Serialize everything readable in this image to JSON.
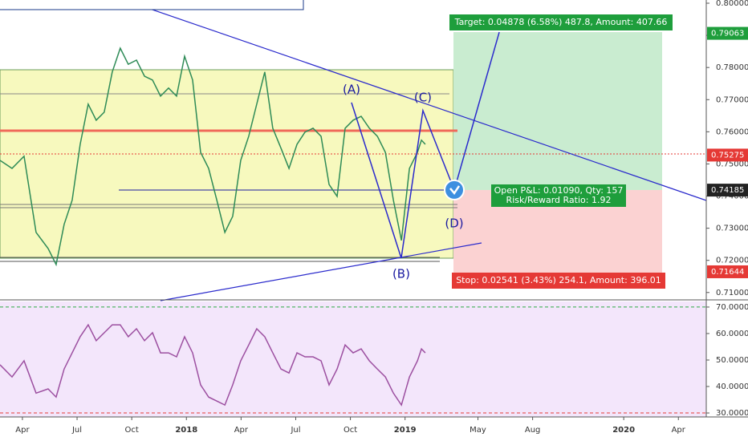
{
  "chart_data": [
    {
      "type": "line",
      "name": "price",
      "x": [
        1.77,
        2.43,
        3.09,
        3.75,
        4.41,
        4.85,
        5.29,
        5.73,
        6.17,
        6.61,
        7.05,
        7.49,
        7.93,
        8.37,
        8.81,
        9.26,
        9.7,
        10.14,
        10.58,
        11.02,
        11.46,
        11.9,
        12.34,
        12.78,
        13.22,
        13.67,
        14.11,
        14.54,
        14.98,
        15.42,
        15.86,
        16.3,
        16.74,
        17.19,
        17.63,
        18.07,
        18.51,
        18.95,
        19.39,
        19.83,
        20.27,
        20.71,
        21.15,
        21.59,
        22.04,
        22.48,
        22.92,
        23.36,
        23.8,
        24.24,
        24.68,
        24.9,
        25.11
      ],
      "series": [
        {
          "color": "#2e8b57",
          "values": [
            0.7511,
            0.7486,
            0.7524,
            0.7287,
            0.7237,
            0.7187,
            0.7312,
            0.7387,
            0.7561,
            0.7686,
            0.7636,
            0.7661,
            0.7786,
            0.786,
            0.781,
            0.7823,
            0.7773,
            0.7761,
            0.7711,
            0.7736,
            0.7711,
            0.7835,
            0.7761,
            0.7536,
            0.7486,
            0.7387,
            0.7287,
            0.7337,
            0.7511,
            0.7586,
            0.7686,
            0.7786,
            0.7611,
            0.7549,
            0.7486,
            0.7561,
            0.7599,
            0.7611,
            0.7586,
            0.7436,
            0.7399,
            0.7611,
            0.7636,
            0.7648,
            0.7611,
            0.7586,
            0.7536,
            0.7387,
            0.7262,
            0.7486,
            0.7536,
            0.7574,
            0.7561
          ]
        }
      ],
      "xlim": [
        1.77,
        40.53
      ],
      "ylim": [
        0.7082,
        0.801
      ],
      "yticks": [
        {
          "value": 0.71,
          "label": "0.71000"
        },
        {
          "value": 0.72,
          "label": "0.72000"
        },
        {
          "value": 0.73,
          "label": "0.73000"
        },
        {
          "value": 0.74,
          "label": "0.74000"
        },
        {
          "value": 0.75,
          "label": "0.75000"
        },
        {
          "value": 0.76,
          "label": "0.76000"
        },
        {
          "value": 0.77,
          "label": "0.77000"
        },
        {
          "value": 0.78,
          "label": "0.78000"
        },
        {
          "value": 0.79,
          "label": "0.79000"
        },
        {
          "value": 0.8,
          "label": "0.80000"
        }
      ],
      "price_tags": [
        0.79063,
        0.75275,
        0.74185,
        0.71644
      ],
      "price_tag_colors": [
        "#1e9e3c",
        "#e53935",
        "#222222",
        "#e53935"
      ],
      "points": [
        {
          "label": "(A)",
          "x": 21.06,
          "y": 0.7691
        },
        {
          "label": "(B)",
          "x": 23.79,
          "y": 0.7207
        },
        {
          "label": "(C)",
          "x": 24.98,
          "y": 0.7666
        },
        {
          "label": "(D)",
          "x": 26.7,
          "y": 0.7419
        }
      ],
      "target_point": {
        "x": 29.17,
        "y": 0.791
      },
      "annotations": [
        "Target: 0.04878 (6.58%) 487.8, Amount: 407.66",
        "Open P&L: 0.01090, Qty: 157",
        "Risk/Reward Ratio: 1.92",
        "Stop: 0.02541 (3.43%) 254.1, Amount: 396.01"
      ]
    },
    {
      "type": "line",
      "name": "rsi",
      "x": [
        1.77,
        2.43,
        3.09,
        3.75,
        4.41,
        4.85,
        5.29,
        5.73,
        6.17,
        6.61,
        7.05,
        7.49,
        7.93,
        8.37,
        8.81,
        9.26,
        9.7,
        10.14,
        10.58,
        11.02,
        11.46,
        11.9,
        12.34,
        12.78,
        13.22,
        13.67,
        14.11,
        14.54,
        14.98,
        15.42,
        15.86,
        16.3,
        16.74,
        17.19,
        17.63,
        18.07,
        18.51,
        18.95,
        19.39,
        19.83,
        20.27,
        20.71,
        21.15,
        21.59,
        22.04,
        22.48,
        22.92,
        23.36,
        23.8,
        24.24,
        24.68,
        24.9,
        25.11
      ],
      "series": [
        {
          "color": "#9c4fa0",
          "values": [
            48.2,
            43.6,
            49.7,
            37.5,
            39.1,
            36.0,
            46.6,
            52.7,
            58.8,
            63.3,
            57.3,
            60.3,
            63.3,
            63.3,
            58.8,
            61.8,
            57.3,
            60.3,
            52.7,
            52.7,
            51.2,
            58.8,
            52.7,
            40.6,
            36.0,
            34.5,
            33.0,
            40.6,
            49.7,
            55.7,
            61.8,
            58.8,
            52.7,
            46.6,
            45.1,
            52.7,
            51.2,
            51.2,
            49.7,
            40.6,
            46.6,
            55.7,
            52.7,
            54.2,
            49.7,
            46.6,
            43.6,
            37.5,
            33.0,
            43.6,
            49.7,
            54.2,
            52.7
          ]
        }
      ],
      "xlim": [
        1.77,
        40.53
      ],
      "ylim": [
        28.5,
        72.1
      ],
      "levels": [
        30,
        70
      ],
      "level_colors": [
        "#e53935",
        "#2eaa44"
      ],
      "yticks": [
        {
          "value": 30,
          "label": "30.0000"
        },
        {
          "value": 40,
          "label": "40.0000"
        },
        {
          "value": 50,
          "label": "50.0000"
        },
        {
          "value": 60,
          "label": "60.0000"
        },
        {
          "value": 70,
          "label": "70.0000"
        }
      ],
      "xticks": [
        {
          "value": 3,
          "label": "Apr"
        },
        {
          "value": 6,
          "label": "Jul"
        },
        {
          "value": 9,
          "label": "Oct"
        },
        {
          "value": 12,
          "label": "2018"
        },
        {
          "value": 15,
          "label": "Apr"
        },
        {
          "value": 18,
          "label": "Jul"
        },
        {
          "value": 21,
          "label": "Oct"
        },
        {
          "value": 24,
          "label": "2019"
        },
        {
          "value": 28,
          "label": "May"
        },
        {
          "value": 31,
          "label": "Aug"
        },
        {
          "value": 36,
          "label": "2020"
        },
        {
          "value": 39,
          "label": "Apr"
        }
      ]
    }
  ]
}
